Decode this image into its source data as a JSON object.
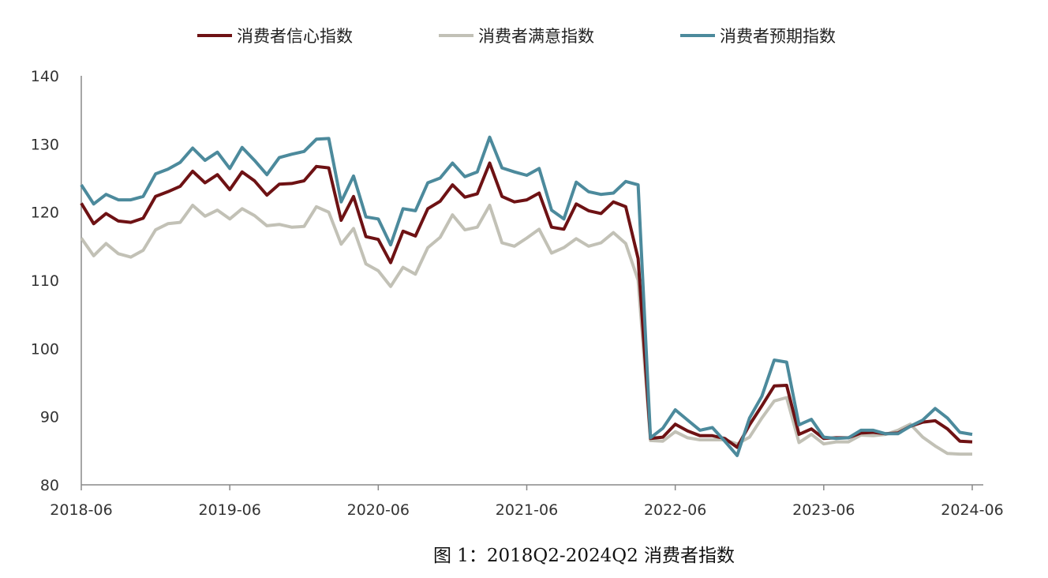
{
  "caption": "图 1：2018Q2-2024Q2 消费者指数",
  "chart_data": {
    "type": "line",
    "title": "",
    "xlabel": "",
    "ylabel": "",
    "ylim": [
      80,
      140
    ],
    "yticks": [
      "80",
      "90",
      "100",
      "110",
      "120",
      "130",
      "140"
    ],
    "xticks": [
      "2018-06",
      "2019-06",
      "2020-06",
      "2021-06",
      "2022-06",
      "2023-06",
      "2024-06"
    ],
    "x_start": "2018-06",
    "x_end": "2024-06",
    "frequency": "monthly",
    "grid": false,
    "legend_position": "top",
    "series": [
      {
        "name": "消费者信心指数",
        "color": "#6e1214",
        "values": [
          121.3,
          118.3,
          119.8,
          118.7,
          118.5,
          119.1,
          122.3,
          123.0,
          123.8,
          126.0,
          124.3,
          125.5,
          123.3,
          125.9,
          124.6,
          122.5,
          124.1,
          124.2,
          124.6,
          126.7,
          126.5,
          118.8,
          122.3,
          116.4,
          116.0,
          112.6,
          117.2,
          116.5,
          120.5,
          121.6,
          124.0,
          122.2,
          122.7,
          127.2,
          122.3,
          121.5,
          121.8,
          122.8,
          117.8,
          117.5,
          121.2,
          120.2,
          119.8,
          121.5,
          120.8,
          113.2,
          86.8,
          87.0,
          88.9,
          87.9,
          87.2,
          87.2,
          86.8,
          85.5,
          88.8,
          91.6,
          94.5,
          94.6,
          87.4,
          88.2,
          86.8,
          86.9,
          86.9,
          87.6,
          87.7,
          87.5,
          87.6,
          88.6,
          89.2,
          89.4,
          88.2,
          86.4,
          86.3
        ]
      },
      {
        "name": "消费者满意指数",
        "color": "#c2c1b6",
        "values": [
          116.2,
          113.6,
          115.4,
          113.9,
          113.4,
          114.4,
          117.4,
          118.3,
          118.5,
          121.0,
          119.4,
          120.3,
          119.0,
          120.5,
          119.5,
          118.0,
          118.2,
          117.8,
          117.9,
          120.8,
          120.0,
          115.3,
          117.6,
          112.4,
          111.4,
          109.1,
          111.9,
          110.9,
          114.8,
          116.3,
          119.6,
          117.4,
          117.8,
          121.0,
          115.5,
          115.0,
          116.2,
          117.5,
          114.0,
          114.8,
          116.1,
          115.0,
          115.5,
          117.0,
          115.4,
          110.0,
          86.5,
          86.4,
          87.8,
          86.9,
          86.6,
          86.6,
          86.6,
          86.0,
          87.0,
          89.8,
          92.3,
          92.8,
          86.2,
          87.4,
          86.0,
          86.3,
          86.3,
          87.3,
          87.2,
          87.4,
          88.0,
          88.9,
          87.0,
          85.7,
          84.6,
          84.5,
          84.5
        ]
      },
      {
        "name": "消费者预期指数",
        "color": "#4c8a9c",
        "values": [
          124.0,
          121.2,
          122.6,
          121.8,
          121.8,
          122.3,
          125.6,
          126.3,
          127.3,
          129.4,
          127.6,
          128.8,
          126.4,
          129.5,
          127.6,
          125.5,
          128.0,
          128.5,
          128.9,
          130.7,
          130.8,
          121.5,
          125.3,
          119.3,
          119.0,
          115.2,
          120.5,
          120.2,
          124.3,
          125.0,
          127.2,
          125.2,
          125.9,
          131.0,
          126.5,
          125.9,
          125.4,
          126.4,
          120.3,
          119.0,
          124.4,
          123.0,
          122.6,
          122.8,
          124.5,
          124.0,
          86.9,
          88.3,
          91.0,
          89.5,
          88.0,
          88.4,
          86.4,
          84.3,
          89.8,
          93.0,
          98.3,
          98.0,
          88.8,
          89.6,
          87.0,
          86.8,
          86.9,
          88.0,
          88.0,
          87.5,
          87.5,
          88.6,
          89.5,
          91.2,
          89.8,
          87.7,
          87.4
        ]
      }
    ]
  }
}
